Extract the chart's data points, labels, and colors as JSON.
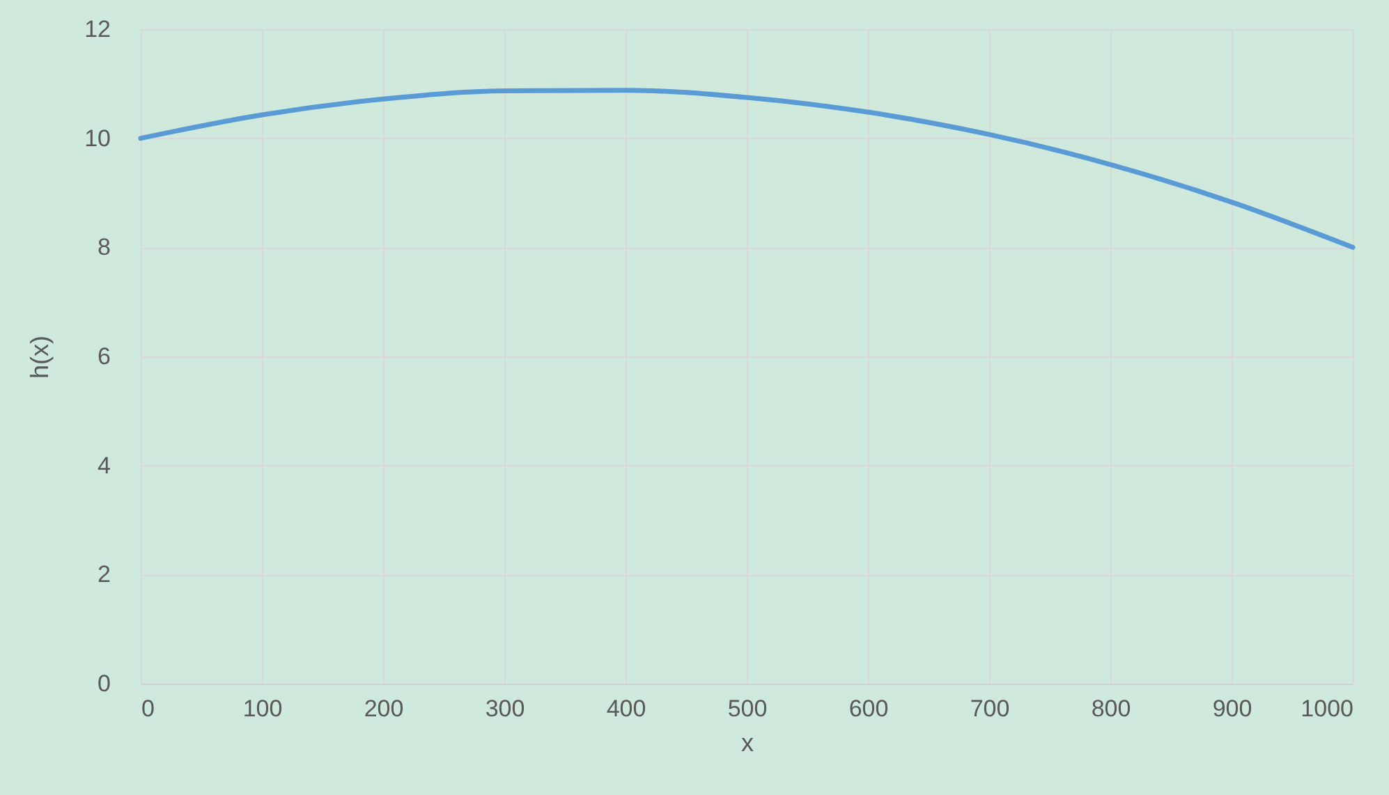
{
  "chart_data": {
    "type": "line",
    "xlabel": "x",
    "ylabel": "h(x)",
    "x": [
      0,
      100,
      200,
      300,
      400,
      500,
      600,
      700,
      800,
      900,
      1000
    ],
    "series": [
      {
        "color": "#5b9bd5",
        "values": [
          10,
          10.43,
          10.72,
          10.87,
          10.88,
          10.75,
          10.48,
          10.07,
          9.52,
          8.83,
          8
        ]
      }
    ],
    "xlim": [
      0,
      1000
    ],
    "xticks": [
      0,
      100,
      200,
      300,
      400,
      500,
      600,
      700,
      800,
      900,
      1000
    ],
    "ylim": [
      0,
      12
    ],
    "yticks": [
      0,
      2,
      4,
      6,
      8,
      10,
      12
    ],
    "grid": true,
    "legend": false,
    "marker": "none",
    "line_style": "solid"
  }
}
